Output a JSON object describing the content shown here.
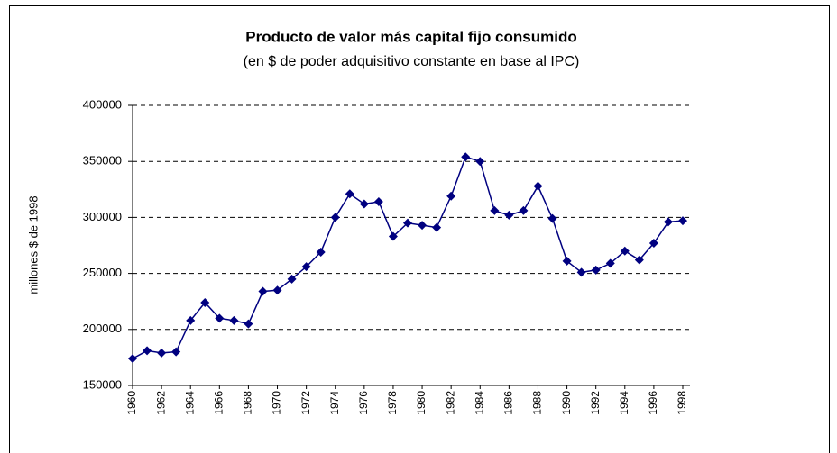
{
  "chart_data": {
    "type": "line",
    "title": "Producto de valor más capital fijo consumido",
    "subtitle": "(en $ de poder adquisitivo constante en base al IPC)",
    "y_label": "millones $ de 1998",
    "x": [
      1960,
      1961,
      1962,
      1963,
      1964,
      1965,
      1966,
      1967,
      1968,
      1969,
      1970,
      1971,
      1972,
      1973,
      1974,
      1975,
      1976,
      1977,
      1978,
      1979,
      1980,
      1981,
      1982,
      1983,
      1984,
      1985,
      1986,
      1987,
      1988,
      1989,
      1990,
      1991,
      1992,
      1993,
      1994,
      1995,
      1996,
      1997,
      1998
    ],
    "values": [
      174000,
      181000,
      179000,
      180000,
      208000,
      224000,
      210000,
      208000,
      205000,
      234000,
      235000,
      245000,
      256000,
      269000,
      300000,
      321000,
      312000,
      314000,
      283000,
      295000,
      293000,
      291000,
      319000,
      354000,
      350000,
      306000,
      302000,
      306000,
      328000,
      299000,
      261000,
      251000,
      253000,
      259000,
      270000,
      262000,
      277000,
      296000,
      297000
    ],
    "color": "#000080",
    "xlim": [
      1960,
      1998
    ],
    "xticks": [
      1960,
      1962,
      1964,
      1966,
      1968,
      1970,
      1972,
      1974,
      1976,
      1978,
      1980,
      1982,
      1984,
      1986,
      1988,
      1990,
      1992,
      1994,
      1996,
      1998
    ],
    "ylim": [
      150000,
      400000
    ],
    "yticks": [
      150000,
      200000,
      250000,
      300000,
      350000,
      400000
    ],
    "grid": true
  }
}
